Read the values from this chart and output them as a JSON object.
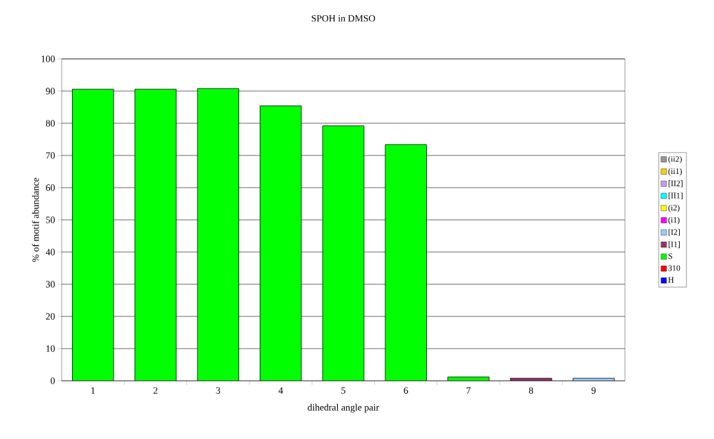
{
  "chart_data": {
    "type": "bar",
    "stacked": true,
    "title": "SPOH in DMSO",
    "xlabel": "dihedral angle pair",
    "ylabel": "% of motif abundance",
    "categories": [
      "1",
      "2",
      "3",
      "4",
      "5",
      "6",
      "7",
      "8",
      "9"
    ],
    "series": [
      {
        "name": "H",
        "color": "#0000ff",
        "values": [
          null,
          null,
          null,
          null,
          null,
          null,
          null,
          null,
          null
        ]
      },
      {
        "name": "310",
        "color": "#ff0000",
        "values": [
          null,
          null,
          null,
          null,
          null,
          null,
          null,
          null,
          null
        ]
      },
      {
        "name": "S",
        "color": "#00ff00",
        "values": [
          90.6,
          90.6,
          90.8,
          85.4,
          79.2,
          73.4,
          1.2,
          null,
          null
        ]
      },
      {
        "name": "[I1]",
        "color": "#993366",
        "values": [
          null,
          null,
          null,
          null,
          null,
          null,
          null,
          0.8,
          null
        ]
      },
      {
        "name": "[I2]",
        "color": "#99ccff",
        "values": [
          null,
          null,
          null,
          null,
          null,
          null,
          null,
          null,
          0.8
        ]
      },
      {
        "name": "(i1)",
        "color": "#ff00ff",
        "values": [
          null,
          null,
          null,
          null,
          null,
          null,
          null,
          null,
          null
        ]
      },
      {
        "name": "(i2)",
        "color": "#ffff00",
        "values": [
          null,
          null,
          null,
          null,
          null,
          null,
          null,
          null,
          null
        ]
      },
      {
        "name": "[II1]",
        "color": "#00ffff",
        "values": [
          null,
          null,
          null,
          null,
          null,
          null,
          null,
          null,
          null
        ]
      },
      {
        "name": "[II2]",
        "color": "#cc99ff",
        "values": [
          null,
          null,
          null,
          null,
          null,
          null,
          null,
          null,
          null
        ]
      },
      {
        "name": "(ii1)",
        "color": "#ffcc00",
        "values": [
          null,
          null,
          null,
          null,
          null,
          null,
          null,
          null,
          null
        ]
      },
      {
        "name": "(ii2)",
        "color": "#969696",
        "values": [
          null,
          null,
          null,
          null,
          null,
          null,
          null,
          null,
          null
        ]
      }
    ],
    "ylim": [
      0,
      100
    ],
    "yticks": [
      0,
      10,
      20,
      30,
      40,
      50,
      60,
      70,
      80,
      90,
      100
    ],
    "grid": "y",
    "legend": "right"
  }
}
